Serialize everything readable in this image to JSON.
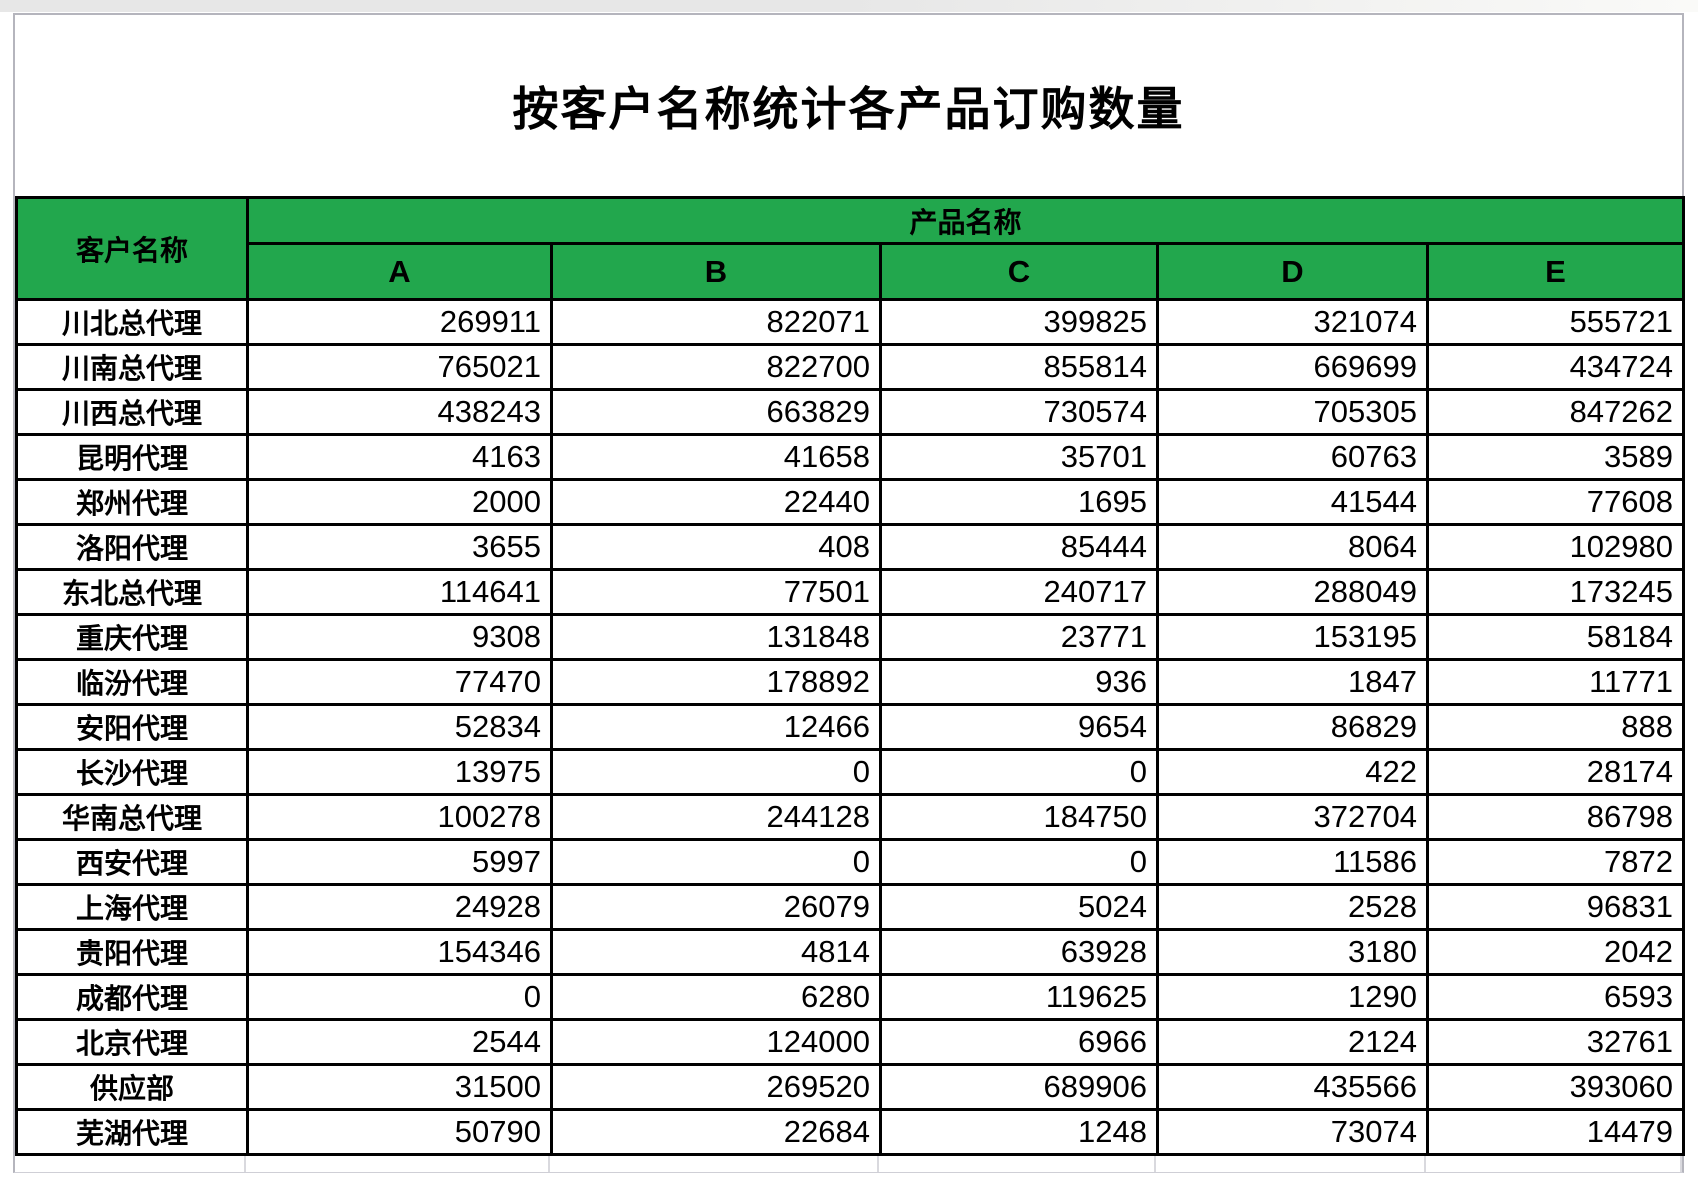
{
  "title": "按客户名称统计各产品订购数量",
  "chart_data": {
    "type": "table",
    "title": "按客户名称统计各产品订购数量",
    "customer_header": "客户名称",
    "product_group_header": "产品名称",
    "product_columns": [
      "A",
      "B",
      "C",
      "D",
      "E"
    ],
    "rows": [
      {
        "customer": "川北总代理",
        "values": [
          269911,
          822071,
          399825,
          321074,
          555721
        ]
      },
      {
        "customer": "川南总代理",
        "values": [
          765021,
          822700,
          855814,
          669699,
          434724
        ]
      },
      {
        "customer": "川西总代理",
        "values": [
          438243,
          663829,
          730574,
          705305,
          847262
        ]
      },
      {
        "customer": "昆明代理",
        "values": [
          4163,
          41658,
          35701,
          60763,
          3589
        ]
      },
      {
        "customer": "郑州代理",
        "values": [
          2000,
          22440,
          1695,
          41544,
          77608
        ]
      },
      {
        "customer": "洛阳代理",
        "values": [
          3655,
          408,
          85444,
          8064,
          102980
        ]
      },
      {
        "customer": "东北总代理",
        "values": [
          114641,
          77501,
          240717,
          288049,
          173245
        ]
      },
      {
        "customer": "重庆代理",
        "values": [
          9308,
          131848,
          23771,
          153195,
          58184
        ]
      },
      {
        "customer": "临汾代理",
        "values": [
          77470,
          178892,
          936,
          1847,
          11771
        ]
      },
      {
        "customer": "安阳代理",
        "values": [
          52834,
          12466,
          9654,
          86829,
          888
        ]
      },
      {
        "customer": "长沙代理",
        "values": [
          13975,
          0,
          0,
          422,
          28174
        ]
      },
      {
        "customer": "华南总代理",
        "values": [
          100278,
          244128,
          184750,
          372704,
          86798
        ]
      },
      {
        "customer": "西安代理",
        "values": [
          5997,
          0,
          0,
          11586,
          7872
        ]
      },
      {
        "customer": "上海代理",
        "values": [
          24928,
          26079,
          5024,
          2528,
          96831
        ]
      },
      {
        "customer": "贵阳代理",
        "values": [
          154346,
          4814,
          63928,
          3180,
          2042
        ]
      },
      {
        "customer": "成都代理",
        "values": [
          0,
          6280,
          119625,
          1290,
          6593
        ]
      },
      {
        "customer": "北京代理",
        "values": [
          2544,
          124000,
          6966,
          2124,
          32761
        ]
      },
      {
        "customer": "供应部",
        "values": [
          31500,
          269520,
          689906,
          435566,
          393060
        ]
      },
      {
        "customer": "芜湖代理",
        "values": [
          50790,
          22684,
          1248,
          73074,
          14479
        ]
      }
    ]
  },
  "colors": {
    "header_fill": "#22a74d",
    "table_border": "#000000",
    "page_frame": "#b5b5bd",
    "gridline": "#d9d9de"
  }
}
